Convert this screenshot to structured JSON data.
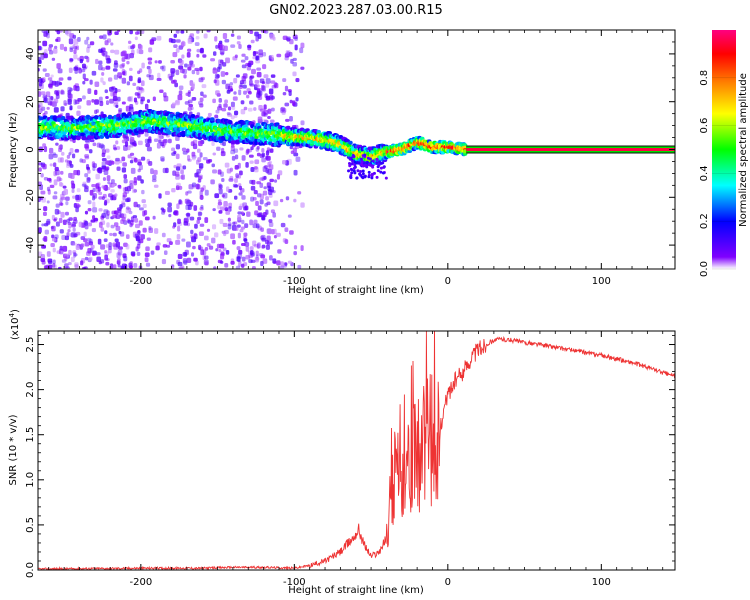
{
  "title": "GN02.2023.287.03.00.R15",
  "chart_data": [
    {
      "type": "heatmap",
      "xlabel": "Height of straight line (km)",
      "ylabel": "Frequency (Hz)",
      "xlim": [
        -267,
        148
      ],
      "ylim": [
        -50,
        50
      ],
      "xticks": [
        -200,
        -100,
        0,
        100
      ],
      "yticks": [
        -40,
        -20,
        0,
        20,
        40
      ],
      "grid": false,
      "colorbar": {
        "label": "Normalized spectral amplitude",
        "range": [
          0,
          1
        ],
        "ticks": [
          "0.0",
          "0.2",
          "0.4",
          "0.6",
          "0.8"
        ],
        "colors": [
          "#ffffff",
          "#8000ff",
          "#0000ff",
          "#00ffff",
          "#00ff00",
          "#ffff00",
          "#ff8000",
          "#ff0000",
          "#ff0080"
        ]
      },
      "ridge": {
        "x": [
          -267,
          -240,
          -215,
          -195,
          -170,
          -150,
          -130,
          -110,
          -95,
          -80,
          -70,
          -60,
          -50,
          -40,
          -30,
          -20,
          -10,
          0,
          12
        ],
        "y": [
          9,
          9,
          10,
          12,
          10,
          8,
          7,
          6,
          5,
          4,
          2,
          -2,
          -3,
          -1,
          0,
          3,
          1,
          1,
          0
        ]
      },
      "constant_line": {
        "x": [
          12,
          148
        ],
        "y": 0,
        "amplitude": 0.95
      }
    },
    {
      "type": "line",
      "xlabel": "Height of straight line (km)",
      "ylabel": "SNR (10 * v/v)",
      "yscale_label": "(x10",
      "yscale_exp": "4",
      "xlim": [
        -267,
        148
      ],
      "ylim": [
        0,
        2.65
      ],
      "xticks": [
        -200,
        -100,
        0,
        100
      ],
      "yticks": [
        "0.0",
        "0.5",
        "1.0",
        "1.5",
        "2.0",
        "2.5"
      ],
      "grid": false,
      "color": "#ee3333",
      "series": [
        {
          "x": [
            -267,
            -240,
            -200,
            -160,
            -140,
            -120,
            -100,
            -90,
            -80,
            -70,
            -62,
            -58,
            -55,
            -50,
            -45,
            -40,
            -37,
            -35,
            -32,
            -30,
            -27,
            -24,
            -20,
            -15,
            -10,
            -5,
            0,
            5,
            10,
            15,
            20,
            25,
            30,
            35,
            40,
            45,
            50,
            60,
            70,
            80,
            90,
            100,
            110,
            120,
            130,
            140,
            148
          ],
          "y": [
            0.01,
            0.015,
            0.02,
            0.02,
            0.03,
            0.03,
            0.02,
            0.05,
            0.1,
            0.2,
            0.35,
            0.45,
            0.3,
            0.15,
            0.2,
            0.35,
            0.8,
            1.05,
            1.0,
            0.95,
            1.1,
            1.2,
            1.3,
            1.4,
            1.45,
            1.6,
            1.95,
            2.1,
            2.2,
            2.35,
            2.45,
            2.5,
            2.55,
            2.56,
            2.55,
            2.54,
            2.52,
            2.5,
            2.47,
            2.44,
            2.41,
            2.38,
            2.34,
            2.3,
            2.25,
            2.19,
            2.15
          ]
        }
      ]
    }
  ]
}
